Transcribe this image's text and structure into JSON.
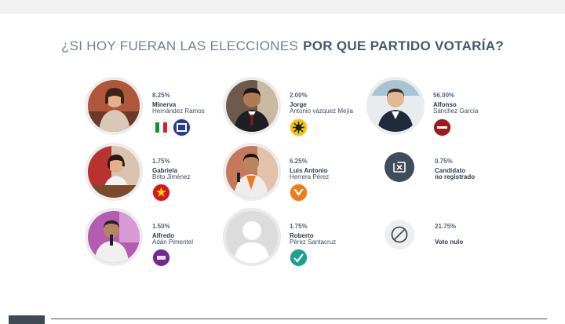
{
  "title": {
    "regular": "¿SI HOY FUERAN LAS ELECCIONES",
    "bold": "POR  QUE PARTIDO VOTARÍA?"
  },
  "candidates": [
    {
      "pct": "8.25%",
      "first": "Minerva",
      "last": "Hernández Ramos",
      "logos": [
        "PRI",
        "PAN"
      ]
    },
    {
      "pct": "2.00%",
      "first": "Jorge",
      "last": "Antonio vázquez Mejía",
      "logos": [
        "PRD"
      ]
    },
    {
      "pct": "56.00%",
      "first": "Alfonso",
      "last": "Sánchez García",
      "logos": [
        "Morena"
      ]
    },
    {
      "pct": "1.75%",
      "first": "Gabriela",
      "last": "Brito Jiménez",
      "logos": [
        "PT"
      ]
    },
    {
      "pct": "6.25%",
      "first": "Luis Antonio",
      "last": "Herrera Pérez",
      "logos": [
        "MC"
      ]
    },
    {
      "pct": "0.75%",
      "first": "Candidato",
      "last": "no registrado",
      "logos": []
    },
    {
      "pct": "1.50%",
      "first": "Alfredo",
      "last": "Adán Pimentel",
      "logos": [
        "PAC"
      ]
    },
    {
      "pct": "1.75%",
      "first": "Roberto",
      "last": "Pérez Santacruz",
      "logos": [
        "Verde"
      ]
    },
    {
      "pct": "21.75%",
      "first": "Voto nulo",
      "last": "",
      "logos": []
    }
  ],
  "colors": {
    "pri_green": "#1a8a3c",
    "pri_red": "#d51e2b",
    "pan_blue": "#2a3a8f",
    "prd_yellow": "#f5c400",
    "morena": "#9b1c1f",
    "pt_red": "#d4161f",
    "mc_orange": "#f07a18",
    "pac_purple": "#6f2b8f",
    "verde_teal": "#1ea08e",
    "dark_icon": "#3f4d5a"
  }
}
